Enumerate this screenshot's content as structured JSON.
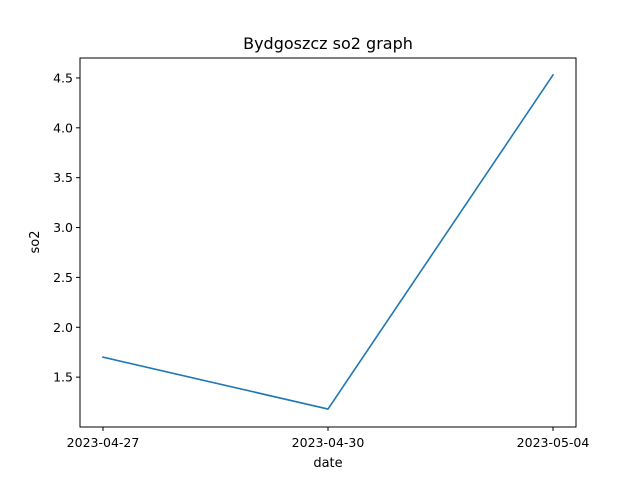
{
  "chart_data": {
    "type": "line",
    "title": "Bydgoszcz so2 graph",
    "xlabel": "date",
    "ylabel": "so2",
    "x_categories": [
      "2023-04-27",
      "2023-04-30",
      "2023-05-04"
    ],
    "series": [
      {
        "values": [
          1.7,
          1.18,
          4.53
        ]
      }
    ],
    "ylim": [
      1.0,
      4.7
    ],
    "yticks": [
      1.5,
      2.0,
      2.5,
      3.0,
      3.5,
      4.0,
      4.5
    ],
    "ytick_labels": [
      "1.5",
      "2.0",
      "2.5",
      "3.0",
      "3.5",
      "4.0",
      "4.5"
    ],
    "grid": false,
    "line_color": "#1f77b4"
  }
}
